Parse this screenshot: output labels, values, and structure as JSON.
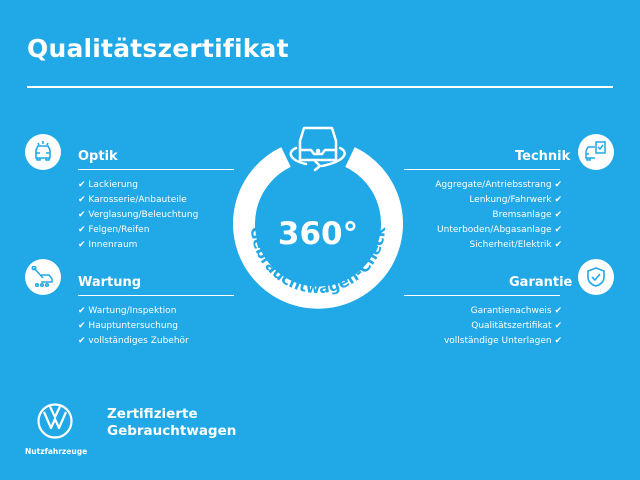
{
  "header": {
    "title": "Qualitätszertifikat"
  },
  "center": {
    "degrees": "360°",
    "arc_text": "Gebrauchtwagen-Check",
    "icon": "car-360-icon"
  },
  "sections": {
    "optik": {
      "title": "Optik",
      "icon": "car-front-icon",
      "items": [
        "Lackierung",
        "Karosserie/Anbauteile",
        "Verglasung/Beleuchtung",
        "Felgen/Reifen",
        "Innenraum"
      ]
    },
    "wartung": {
      "title": "Wartung",
      "icon": "wrench-car-icon",
      "items": [
        "Wartung/Inspektion",
        "Hauptuntersuchung",
        "vollständiges Zubehör"
      ]
    },
    "technik": {
      "title": "Technik",
      "icon": "car-checklist-icon",
      "items": [
        "Aggregate/Antriebsstrang",
        "Lenkung/Fahrwerk",
        "Bremsanlage",
        "Unterboden/Abgasanlage",
        "Sicherheit/Elektrik"
      ]
    },
    "garantie": {
      "title": "Garantie",
      "icon": "shield-check-icon",
      "items": [
        "Garantienachweis",
        "Qualitätszertifikat",
        "vollständige Unterlagen"
      ]
    }
  },
  "check_mark": "✔",
  "footer": {
    "line1": "Zertifizierte",
    "line2": "Gebrauchtwagen",
    "brand": "Nutzfahrzeuge",
    "logo": "VW"
  },
  "colors": {
    "background": "#21a8e6",
    "foreground": "#ffffff"
  }
}
